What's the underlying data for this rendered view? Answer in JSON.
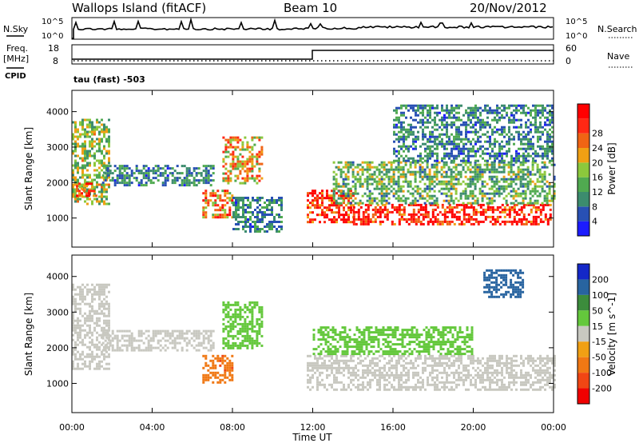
{
  "header": {
    "station": "Wallops Island (fitACF)",
    "beam": "Beam 10",
    "date": "20/Nov/2012",
    "mode": "tau (fast) -503"
  },
  "aux_panels": {
    "nsky_label": "N.Sky",
    "nsearch_label": "N.Search",
    "freq_label_top": "Freq.",
    "freq_label_bottom": "[MHz]",
    "cpid_label": "CPID",
    "nave_label": "Nave",
    "noise_ticks_left": [
      "10^5",
      "10^0"
    ],
    "noise_ticks_right": [
      "10^5",
      "10^0"
    ],
    "freq_ticks": [
      "18",
      "8"
    ],
    "nave_ticks": [
      "60",
      "0"
    ]
  },
  "colors": {
    "power_scale": [
      "#1c1cff",
      "#2850b4",
      "#3c8c6e",
      "#50aa50",
      "#8cc83c",
      "#f0a014",
      "#f06414",
      "#ff2814",
      "#ff0000"
    ],
    "velocity_scale": [
      "#1428c8",
      "#2864a0",
      "#3c8c3c",
      "#64c83c",
      "#c8c8c0",
      "#f0a014",
      "#f07814",
      "#f04614",
      "#f00000"
    ]
  },
  "chart_data": [
    {
      "type": "heatmap",
      "title": "Power",
      "ylabel": "Slant Range [km]",
      "xlabel": "Time UT",
      "x_range": [
        "00:00",
        "24:00"
      ],
      "ylim": [
        180,
        4600
      ],
      "y_ticks": [
        1000,
        2000,
        3000,
        4000
      ],
      "x_ticks": [
        "00:00",
        "04:00",
        "08:00",
        "12:00",
        "16:00",
        "20:00",
        "00:00"
      ],
      "colorbar": {
        "label": "Power [dB]",
        "ticks": [
          "4",
          "8",
          "12",
          "16",
          "20",
          "24",
          "28"
        ],
        "range": [
          0,
          30
        ]
      },
      "echo_regions": [
        {
          "t_start": 0.0,
          "t_end": 1.8,
          "range_start": 1400,
          "range_end": 3800,
          "level": 14
        },
        {
          "t_start": 0.2,
          "t_end": 1.2,
          "range_start": 1600,
          "range_end": 2000,
          "level": 24
        },
        {
          "t_start": 1.5,
          "t_end": 7.0,
          "range_start": 1900,
          "range_end": 2500,
          "level": 8
        },
        {
          "t_start": 6.5,
          "t_end": 8.0,
          "range_start": 1000,
          "range_end": 1800,
          "level": 20
        },
        {
          "t_start": 7.5,
          "t_end": 9.5,
          "range_start": 2000,
          "range_end": 3300,
          "level": 18
        },
        {
          "t_start": 8.0,
          "t_end": 10.5,
          "range_start": 600,
          "range_end": 1600,
          "level": 8
        },
        {
          "t_start": 11.7,
          "t_end": 14.0,
          "range_start": 900,
          "range_end": 1800,
          "level": 26
        },
        {
          "t_start": 14.0,
          "t_end": 23.8,
          "range_start": 800,
          "range_end": 1400,
          "level": 28
        },
        {
          "t_start": 13.0,
          "t_end": 24.0,
          "range_start": 1400,
          "range_end": 2600,
          "level": 12
        },
        {
          "t_start": 16.0,
          "t_end": 24.0,
          "range_start": 2600,
          "range_end": 4200,
          "level": 8
        }
      ]
    },
    {
      "type": "heatmap",
      "title": "Velocity",
      "ylabel": "Slant Range [km]",
      "xlabel": "Time UT",
      "x_range": [
        "00:00",
        "24:00"
      ],
      "ylim": [
        180,
        4600
      ],
      "y_ticks": [
        1000,
        2000,
        3000,
        4000
      ],
      "x_ticks": [
        "00:00",
        "04:00",
        "08:00",
        "12:00",
        "16:00",
        "20:00",
        "00:00"
      ],
      "colorbar": {
        "label": "Velocity [m s^-1]",
        "ticks": [
          "200",
          "100",
          "50",
          "15",
          "-15",
          "-50",
          "-100",
          "-200"
        ],
        "range": [
          -250,
          250
        ]
      },
      "echo_regions": [
        {
          "t_start": 0.0,
          "t_end": 1.8,
          "range_start": 1400,
          "range_end": 3800,
          "level": 0
        },
        {
          "t_start": 1.5,
          "t_end": 7.0,
          "range_start": 1900,
          "range_end": 2500,
          "level": 0
        },
        {
          "t_start": 6.5,
          "t_end": 8.0,
          "range_start": 1000,
          "range_end": 1800,
          "level": -80
        },
        {
          "t_start": 7.5,
          "t_end": 9.5,
          "range_start": 2000,
          "range_end": 3300,
          "level": 30
        },
        {
          "t_start": 11.7,
          "t_end": 24.0,
          "range_start": 800,
          "range_end": 1800,
          "level": 0
        },
        {
          "t_start": 12.0,
          "t_end": 20.0,
          "range_start": 1800,
          "range_end": 2600,
          "level": 30
        },
        {
          "t_start": 20.5,
          "t_end": 22.5,
          "range_start": 3400,
          "range_end": 4200,
          "level": 150
        }
      ]
    }
  ]
}
